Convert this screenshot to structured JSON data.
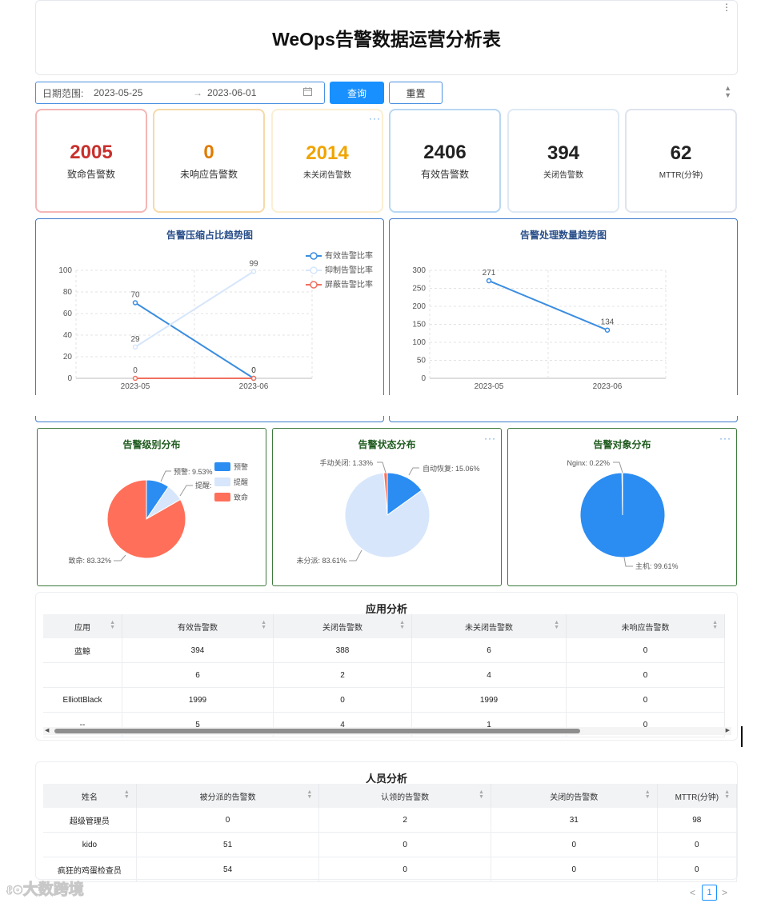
{
  "page_title": "WeOps告警数据运营分析表",
  "filter": {
    "label": "日期范围:",
    "start": "2023-05-25",
    "arrow": "→",
    "end": "2023-06-01",
    "query_button": "查询",
    "reset_button": "重置"
  },
  "kpis": [
    {
      "value": "2005",
      "label": "致命告警数",
      "color": "#c9302c",
      "border": "#f4b6b6"
    },
    {
      "value": "0",
      "label": "未响应告警数",
      "color": "#e07b00",
      "border": "#f7d9a8"
    },
    {
      "value": "2014",
      "label": "未关闭告警数",
      "color": "#f0a400",
      "border": "#fbefd2"
    },
    {
      "value": "2406",
      "label": "有效告警数",
      "color": "#222222",
      "border": "#b7d7f2"
    },
    {
      "value": "394",
      "label": "关闭告警数",
      "color": "#222222",
      "border": "#dfe9f4"
    },
    {
      "value": "62",
      "label": "MTTR(分钟)",
      "color": "#222222",
      "border": "#dfe3ee"
    }
  ],
  "compression_chart": {
    "title": "告警压缩占比趋势图",
    "categories": [
      "2023-05",
      "2023-06"
    ],
    "y_ticks": [
      "0",
      "20",
      "40",
      "60",
      "80",
      "100"
    ],
    "series": [
      {
        "name": "有效告警比率",
        "values": [
          70,
          0
        ],
        "labels": [
          "70",
          "0"
        ],
        "color": "#3b8de0"
      },
      {
        "name": "抑制告警比率",
        "values": [
          29,
          99
        ],
        "labels": [
          "29",
          "99"
        ],
        "color": "#d6e6fb"
      },
      {
        "name": "屏蔽告警比率",
        "values": [
          0,
          0
        ],
        "labels": [
          "0",
          "0"
        ],
        "color": "#f07060"
      }
    ]
  },
  "handling_chart": {
    "title": "告警处理数量趋势图",
    "categories": [
      "2023-05",
      "2023-06"
    ],
    "y_ticks": [
      "0",
      "50",
      "100",
      "150",
      "200",
      "250",
      "300"
    ],
    "values": [
      271,
      134
    ],
    "labels": [
      "271",
      "134"
    ],
    "color": "#3b8de0"
  },
  "chart_data": [
    {
      "type": "line",
      "title": "告警压缩占比趋势图",
      "x": [
        "2023-05",
        "2023-06"
      ],
      "ylim": [
        0,
        100
      ],
      "series": [
        {
          "name": "有效告警比率",
          "values": [
            70,
            0
          ]
        },
        {
          "name": "抑制告警比率",
          "values": [
            29,
            99
          ]
        },
        {
          "name": "屏蔽告警比率",
          "values": [
            0,
            0
          ]
        }
      ]
    },
    {
      "type": "line",
      "title": "告警处理数量趋势图",
      "x": [
        "2023-05",
        "2023-06"
      ],
      "ylim": [
        0,
        300
      ],
      "series": [
        {
          "values": [
            271,
            134
          ]
        }
      ]
    },
    {
      "type": "pie",
      "title": "告警级别分布",
      "labels": [
        "预警",
        "提醒",
        "致命"
      ],
      "values": [
        9.53,
        7.15,
        83.32
      ]
    },
    {
      "type": "pie",
      "title": "告警状态分布",
      "labels": [
        "手动关闭",
        "自动恢复",
        "未分派"
      ],
      "values": [
        1.33,
        15.06,
        83.61
      ]
    },
    {
      "type": "pie",
      "title": "告警对象分布",
      "labels": [
        "Nginx",
        "主机"
      ],
      "values": [
        0.22,
        99.61
      ]
    }
  ],
  "level_pie": {
    "title": "告警级别分布",
    "legend": [
      "预警",
      "提醒",
      "致命"
    ],
    "slices": [
      {
        "name": "预警",
        "pct": 9.53,
        "color": "#2b8cf2"
      },
      {
        "name": "提醒",
        "pct": 7.15,
        "color": "#d7e6fb"
      },
      {
        "name": "致命",
        "pct": 83.32,
        "color": "#ff6f59"
      }
    ],
    "label_warn": "预警: 9.53%",
    "label_remind": "提醒: ",
    "label_fatal": "致命: 83.32%"
  },
  "status_pie": {
    "title": "告警状态分布",
    "slices": [
      {
        "name": "自动恢复",
        "pct": 15.06,
        "color": "#2b8cf2"
      },
      {
        "name": "未分派",
        "pct": 83.61,
        "color": "#d7e6fb"
      },
      {
        "name": "手动关闭",
        "pct": 1.33,
        "color": "#ff6f59"
      }
    ],
    "label_manual": "手动关闭: 1.33%",
    "label_auto": "自动恢复: 15.06%",
    "label_unassigned": "未分派: 83.61%"
  },
  "object_pie": {
    "title": "告警对象分布",
    "slices": [
      {
        "name": "主机",
        "pct": 99.61,
        "color": "#2b8cf2"
      },
      {
        "name": "Nginx",
        "pct": 0.22,
        "color": "#d7e6fb"
      }
    ],
    "label_nginx": "Nginx: 0.22%",
    "label_host": "主机: 99.61%"
  },
  "app_table": {
    "title": "应用分析",
    "columns": [
      "应用",
      "有效告警数",
      "关闭告警数",
      "未关闭告警数",
      "未响应告警数"
    ],
    "rows": [
      [
        "蓝鲸",
        "394",
        "388",
        "6",
        "0"
      ],
      [
        "",
        "6",
        "2",
        "4",
        "0"
      ],
      [
        "ElliottBlack",
        "1999",
        "0",
        "1999",
        "0"
      ],
      [
        "--",
        "5",
        "4",
        "1",
        "0"
      ]
    ]
  },
  "people_table": {
    "title": "人员分析",
    "columns": [
      "姓名",
      "被分派的告警数",
      "认领的告警数",
      "关闭的告警数",
      "MTTR(分钟)"
    ],
    "rows": [
      [
        "超级管理员",
        "0",
        "2",
        "31",
        "98"
      ],
      [
        "kido",
        "51",
        "0",
        "0",
        "0"
      ],
      [
        "疯狂的鸡蛋检查员",
        "54",
        "0",
        "0",
        "0"
      ]
    ]
  },
  "pagination": {
    "prev": "<",
    "page": "1",
    "next": ">"
  },
  "watermark": "大数跨境"
}
